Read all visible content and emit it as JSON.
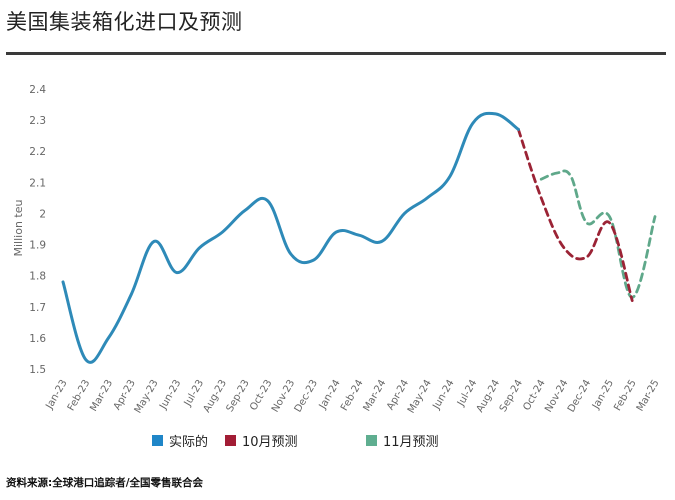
{
  "title": "美国集装箱化进口及预测",
  "source": "资料来源:全球港口追踪者/全国零售联合会",
  "colors": {
    "actual": "#2e8ab8",
    "oct_forecast": "#9b2335",
    "nov_forecast": "#5fa88a",
    "legend_actual": "#1f86c8",
    "legend_oct": "#a21d35",
    "legend_nov": "#5fae90",
    "axis_text": "#666666"
  },
  "chart_data": {
    "type": "line",
    "ylabel": "Million teu",
    "ylim": [
      1.5,
      2.4
    ],
    "yticks": [
      "1.5",
      "1.6",
      "1.7",
      "1.8",
      "1.9",
      "2",
      "2.1",
      "2.2",
      "2.3",
      "2.4"
    ],
    "categories": [
      "Jan-23",
      "Feb-23",
      "Mar-23",
      "Apr-23",
      "May-23",
      "Jun-23",
      "Jul-23",
      "Aug-23",
      "Sep-23",
      "Oct-23",
      "Nov-23",
      "Dec-23",
      "Jan-24",
      "Feb-24",
      "Mar-24",
      "Apr-24",
      "May-24",
      "Jun-24",
      "Jul-24",
      "Aug-24",
      "Sep-24",
      "Oct-24",
      "Nov-24",
      "Dec-24",
      "Jan-25",
      "Feb-25",
      "Mar-25"
    ],
    "grid": false,
    "legend_position": "bottom",
    "series": [
      {
        "name": "实际的",
        "style": "solid",
        "points": [
          [
            0,
            1.78
          ],
          [
            1,
            1.53
          ],
          [
            2,
            1.6
          ],
          [
            3,
            1.74
          ],
          [
            4,
            1.91
          ],
          [
            5,
            1.81
          ],
          [
            6,
            1.89
          ],
          [
            7,
            1.94
          ],
          [
            8,
            2.01
          ],
          [
            9,
            2.04
          ],
          [
            10,
            1.87
          ],
          [
            11,
            1.85
          ],
          [
            12,
            1.94
          ],
          [
            13,
            1.93
          ],
          [
            14,
            1.91
          ],
          [
            15,
            2.0
          ],
          [
            16,
            2.05
          ],
          [
            17,
            2.12
          ],
          [
            18,
            2.29
          ],
          [
            19,
            2.32
          ],
          [
            20,
            2.27
          ]
        ]
      },
      {
        "name": "10月预测",
        "style": "dashed",
        "points": [
          [
            20,
            2.27
          ],
          [
            21,
            2.05
          ],
          [
            22,
            1.89
          ],
          [
            23,
            1.86
          ],
          [
            24,
            1.97
          ],
          [
            25,
            1.72
          ]
        ]
      },
      {
        "name": "11月预测",
        "style": "dashed",
        "points": [
          [
            21,
            2.11
          ],
          [
            21.7,
            2.13
          ],
          [
            22.3,
            2.12
          ],
          [
            23,
            1.97
          ],
          [
            24,
            1.99
          ],
          [
            25,
            1.73
          ],
          [
            26,
            1.99
          ]
        ]
      }
    ]
  }
}
